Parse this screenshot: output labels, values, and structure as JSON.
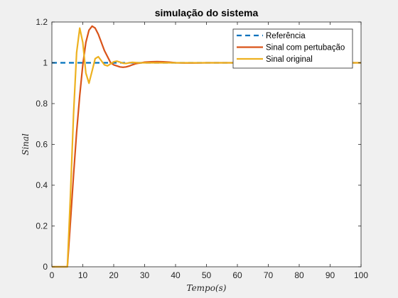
{
  "chart_data": {
    "type": "line",
    "title": "simulação do sistema",
    "xlabel": "Tempo(s)",
    "ylabel": "Sinal",
    "xlim": [
      0,
      100
    ],
    "ylim": [
      0,
      1.2
    ],
    "xticks": [
      0,
      10,
      20,
      30,
      40,
      50,
      60,
      70,
      80,
      90,
      100
    ],
    "yticks": [
      0,
      0.2,
      0.4,
      0.6,
      0.8,
      1,
      1.2
    ],
    "grid": false,
    "legend_position": "top-right",
    "series": [
      {
        "name": "Referência",
        "color": "#0072BD",
        "style": "dashed",
        "x": [
          0,
          100
        ],
        "y": [
          1,
          1
        ]
      },
      {
        "name": "Sinal com pertubação",
        "color": "#D95319",
        "style": "solid",
        "x": [
          0,
          5,
          6,
          7,
          8,
          9,
          10,
          11,
          12,
          13,
          14,
          15,
          16,
          17,
          18,
          19,
          20,
          21,
          22,
          23,
          24,
          25,
          26,
          27,
          28,
          29,
          30,
          32,
          34,
          36,
          38,
          40,
          43,
          46,
          50,
          55,
          60,
          70,
          80,
          90,
          100
        ],
        "y": [
          0,
          0,
          0.22,
          0.45,
          0.66,
          0.84,
          0.99,
          1.1,
          1.16,
          1.18,
          1.17,
          1.14,
          1.1,
          1.06,
          1.03,
          1.0,
          0.99,
          0.985,
          0.98,
          0.978,
          0.98,
          0.984,
          0.99,
          0.995,
          0.998,
          1.0,
          1.003,
          1.005,
          1.006,
          1.005,
          1.003,
          1.0,
          0.999,
          0.999,
          1.0,
          1.0,
          1.0,
          1.0,
          1.0,
          1.0,
          1.0
        ]
      },
      {
        "name": "Sinal original",
        "color": "#EDB120",
        "style": "solid",
        "x": [
          0,
          5,
          6,
          7,
          8,
          9,
          10,
          11,
          12,
          13,
          14,
          15,
          16,
          17,
          18,
          19,
          20,
          21,
          22,
          23,
          24,
          25,
          26,
          28,
          30,
          35,
          40,
          50,
          60,
          70,
          80,
          90,
          100
        ],
        "y": [
          0,
          0,
          0.35,
          0.75,
          1.05,
          1.17,
          1.1,
          0.95,
          0.9,
          0.96,
          1.02,
          1.03,
          1.01,
          0.99,
          0.985,
          0.995,
          1.005,
          1.008,
          1.003,
          0.998,
          0.997,
          1.0,
          1.002,
          1.0,
          1.0,
          1.0,
          1.0,
          1.0,
          1.0,
          1.0,
          1.0,
          1.0,
          1.0
        ]
      }
    ]
  }
}
